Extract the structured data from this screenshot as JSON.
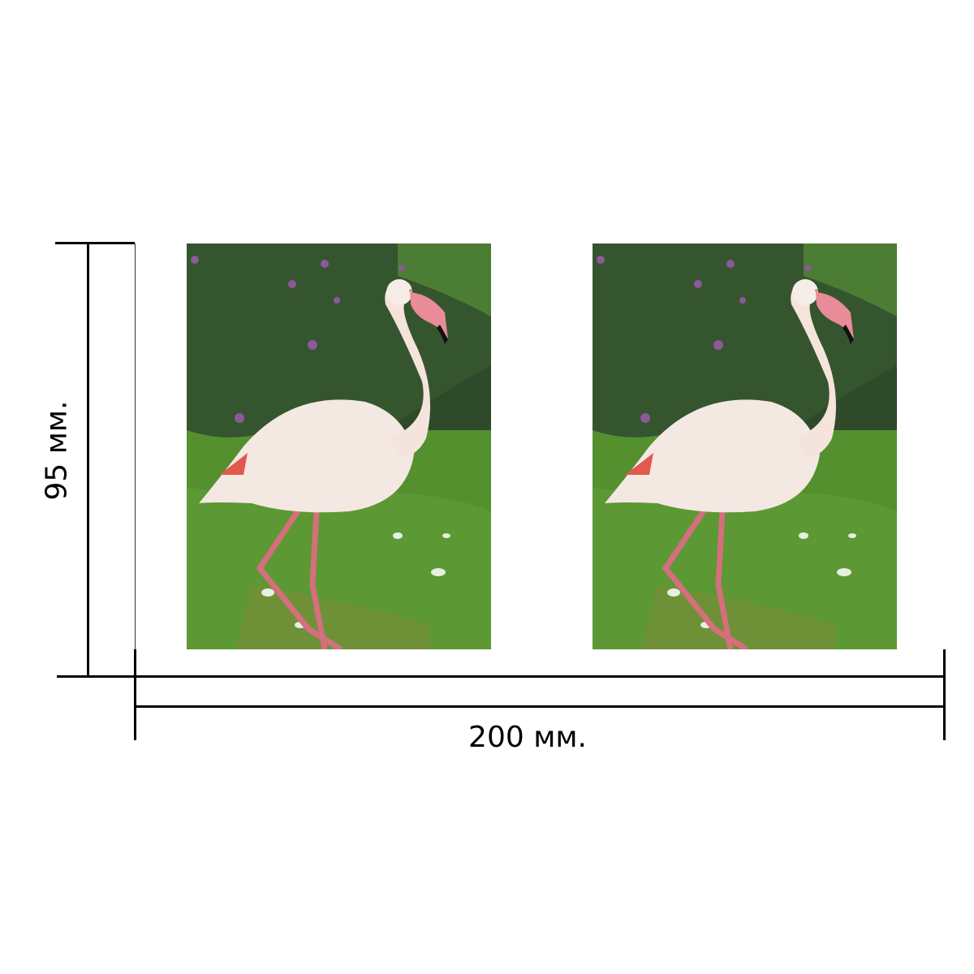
{
  "dimensions": {
    "width_label": "200 мм.",
    "height_label": "95 мм."
  },
  "photos": [
    {
      "subject": "flamingo-photo"
    },
    {
      "subject": "flamingo-photo"
    }
  ],
  "colors": {
    "grass": "#4f8a2e",
    "bush": "#2f4a2a",
    "flamingo": "#f3e6df",
    "beak": "#e68a98",
    "legs": "#d96f7d",
    "line": "#000000"
  }
}
